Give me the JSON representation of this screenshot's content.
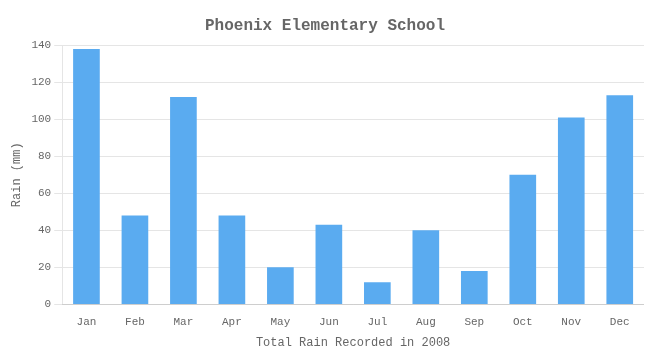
{
  "chart_data": {
    "type": "bar",
    "title": "Phoenix Elementary School",
    "xlabel": "Total Rain Recorded in 2008",
    "ylabel": "Rain (mm)",
    "categories": [
      "Jan",
      "Feb",
      "Mar",
      "Apr",
      "May",
      "Jun",
      "Jul",
      "Aug",
      "Sep",
      "Oct",
      "Nov",
      "Dec"
    ],
    "values": [
      138,
      48,
      112,
      48,
      20,
      43,
      12,
      40,
      18,
      70,
      101,
      113
    ],
    "color": "#5aabf0",
    "ylim": [
      0,
      140
    ],
    "yticks": [
      0,
      20,
      40,
      60,
      80,
      100,
      120,
      140
    ],
    "grid": true
  }
}
